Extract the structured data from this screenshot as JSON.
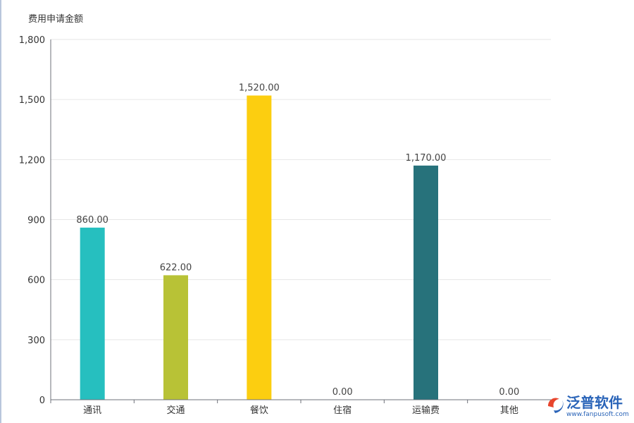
{
  "chart_data": {
    "type": "bar",
    "ylabel": "费用申请金额",
    "categories": [
      "通讯",
      "交通",
      "餐饮",
      "住宿",
      "运输费",
      "其他"
    ],
    "values": [
      860,
      622,
      1520,
      0,
      1170,
      0
    ],
    "value_labels": [
      "860.00",
      "622.00",
      "1,520.00",
      "0.00",
      "1,170.00",
      "0.00"
    ],
    "colors": [
      "#26bfbf",
      "#b8c236",
      "#fcce10",
      "#ff8a45",
      "#27727b",
      "#e87c25"
    ],
    "ylim": [
      0,
      1800
    ],
    "yticks": [
      0,
      300,
      600,
      900,
      1200,
      1500,
      1800
    ],
    "ytick_labels": [
      "0",
      "300",
      "600",
      "900",
      "1,200",
      "1,500",
      "1,800"
    ],
    "grid": true
  },
  "watermark": {
    "logo_text": "泛普软件",
    "url": "www.fanpusoft.com"
  }
}
